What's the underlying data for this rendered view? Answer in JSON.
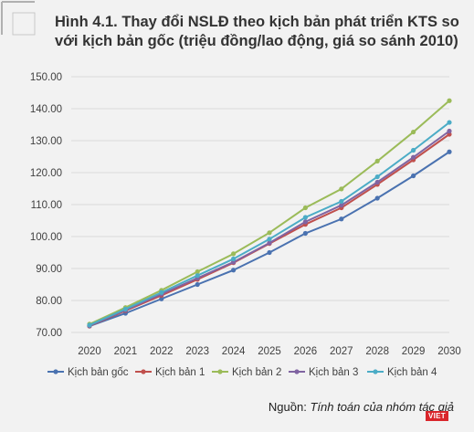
{
  "title_line1": "Hình 4.1. Thay đổi NSLĐ theo kịch bản phát triển KTS so",
  "title_line2": "với kịch bản gốc (triệu đồng/lao động, giá so sánh 2010)",
  "source_label": "Nguồn:",
  "source_text": "Tính toán của nhóm tác giả",
  "badge_text": "VIET",
  "chart_data": {
    "type": "line",
    "x": [
      "2020",
      "2021",
      "2022",
      "2023",
      "2024",
      "2025",
      "2026",
      "2027",
      "2028",
      "2029",
      "2030"
    ],
    "ylim": [
      70,
      150
    ],
    "yticks": [
      "70.00",
      "80.00",
      "90.00",
      "100.00",
      "110.00",
      "120.00",
      "130.00",
      "140.00",
      "150.00"
    ],
    "grid": true,
    "legend_position": "bottom",
    "series": [
      {
        "name": "Kịch bản gốc",
        "color": "#4a72b0",
        "values": [
          72.0,
          76.0,
          80.5,
          85.0,
          89.5,
          95.0,
          101.0,
          105.5,
          112.0,
          119.0,
          126.5
        ]
      },
      {
        "name": "Kịch bản 1",
        "color": "#c0504d",
        "values": [
          72.0,
          76.8,
          81.6,
          86.6,
          91.8,
          97.8,
          103.8,
          109.0,
          116.3,
          124.0,
          132.0
        ]
      },
      {
        "name": "Kịch bản 2",
        "color": "#9bbb59",
        "values": [
          72.6,
          77.8,
          83.2,
          89.0,
          94.6,
          101.2,
          109.0,
          114.9,
          123.6,
          132.7,
          142.5
        ]
      },
      {
        "name": "Kịch bản 3",
        "color": "#8064a2",
        "values": [
          72.1,
          77.0,
          82.0,
          87.0,
          92.0,
          98.0,
          104.6,
          109.8,
          117.0,
          124.8,
          133.0
        ]
      },
      {
        "name": "Kịch bản 4",
        "color": "#4bacc6",
        "values": [
          72.3,
          77.3,
          82.5,
          87.8,
          93.0,
          99.2,
          106.0,
          111.0,
          118.7,
          127.0,
          135.7
        ]
      }
    ]
  }
}
